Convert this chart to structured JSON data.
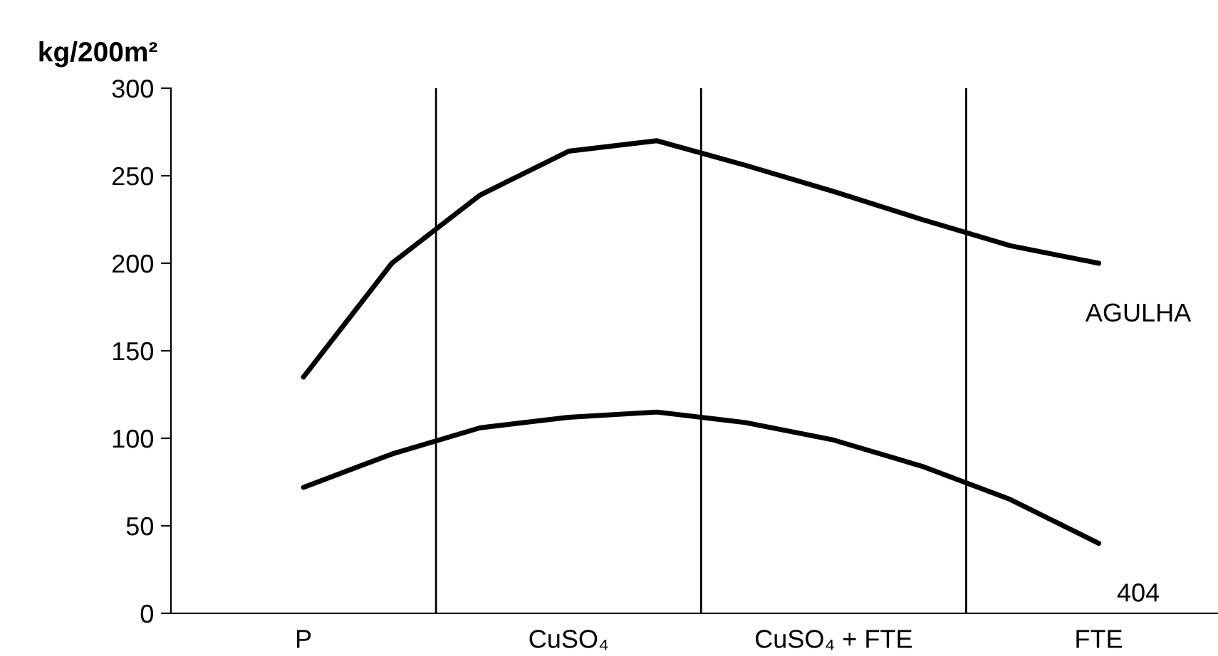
{
  "chart_data": {
    "type": "line",
    "ylabel": "kg/200m²",
    "categories": [
      null,
      "P",
      null,
      null,
      "CuSO₄",
      null,
      null,
      "CuSO₄ + FTE",
      null,
      null,
      "FTE",
      null
    ],
    "ylim": [
      0,
      300
    ],
    "yticks": [
      0,
      50,
      100,
      150,
      200,
      250,
      300
    ],
    "series": [
      {
        "name": "AGULHA",
        "color": "#000000",
        "values": [
          null,
          135,
          200,
          239,
          264,
          270,
          256,
          241,
          225,
          210,
          200,
          null
        ]
      },
      {
        "name": "404",
        "color": "#000000",
        "values": [
          null,
          72,
          91,
          106,
          112,
          115,
          109,
          99,
          84,
          65,
          40,
          null
        ]
      }
    ],
    "grid": false,
    "legend": false,
    "marker": "none",
    "line_style": "solid"
  }
}
